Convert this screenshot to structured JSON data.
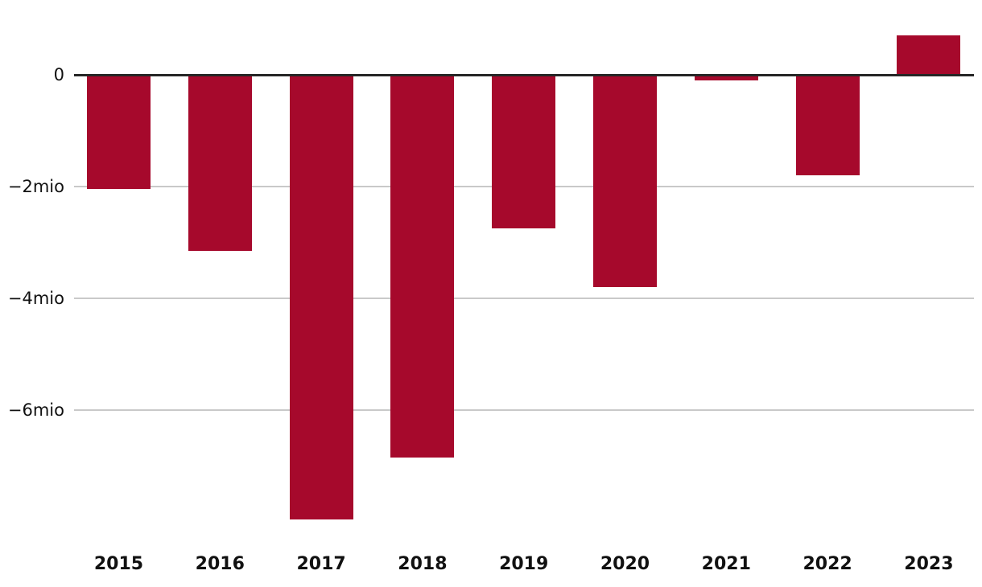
{
  "chart_data": {
    "type": "bar",
    "categories": [
      "2015",
      "2016",
      "2017",
      "2018",
      "2019",
      "2020",
      "2021",
      "2022",
      "2023"
    ],
    "values": [
      -2.05,
      -3.15,
      -7.95,
      -6.85,
      -2.75,
      -3.8,
      -0.1,
      -1.8,
      0.7
    ],
    "unit": "mio",
    "y_ticks": [
      {
        "label": "0",
        "value": 0
      },
      {
        "label": "−2mio",
        "value": -2
      },
      {
        "label": "−4mio",
        "value": -4
      },
      {
        "label": "−6mio",
        "value": -6
      }
    ],
    "ylim": [
      -8.2,
      0.9
    ],
    "grid": true,
    "legend": "none",
    "bar_color": "#A6092C",
    "zero_axis_color": "#262626",
    "gridline_color": "#C9C9C9",
    "label_color": "#111111"
  }
}
